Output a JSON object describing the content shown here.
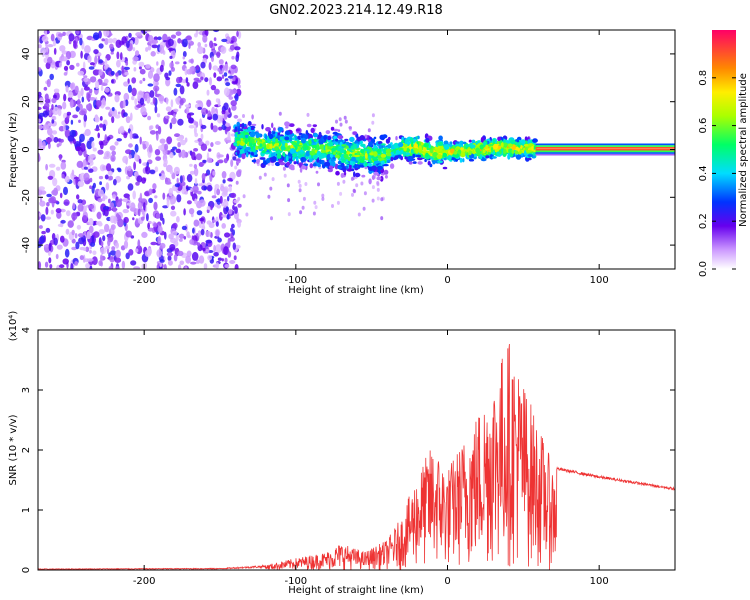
{
  "title": "GN02.2023.214.12.49.R18",
  "chart_data": [
    {
      "type": "heatmap",
      "xlabel": "Height of straight line (km)",
      "ylabel": "Frequency (Hz)",
      "xlim": [
        -270,
        150
      ],
      "ylim": [
        -50,
        50
      ],
      "x_ticks": [
        -200,
        -100,
        0,
        100
      ],
      "y_ticks": [
        -40,
        -20,
        0,
        20,
        40
      ],
      "colorbar": {
        "label": "Normalized spectral amplitude",
        "range": [
          0,
          1
        ],
        "ticks": [
          0.0,
          0.2,
          0.4,
          0.6,
          0.8
        ]
      },
      "ridge": [
        {
          "x": -140,
          "y": 4
        },
        {
          "x": -120,
          "y": 2
        },
        {
          "x": -100,
          "y": 1
        },
        {
          "x": -80,
          "y": 0
        },
        {
          "x": -60,
          "y": -2
        },
        {
          "x": -45,
          "y": -3
        },
        {
          "x": -35,
          "y": 0
        },
        {
          "x": -20,
          "y": 1
        },
        {
          "x": -10,
          "y": -1
        },
        {
          "x": 0,
          "y": -1
        },
        {
          "x": 20,
          "y": 0
        },
        {
          "x": 40,
          "y": 1
        },
        {
          "x": 58,
          "y": 0
        },
        {
          "x": 150,
          "y": 0
        }
      ]
    },
    {
      "type": "line",
      "xlabel": "Height of straight line (km)",
      "ylabel": "SNR (10 * v/v)",
      "multiplier": "(x10⁴)",
      "xlim": [
        -270,
        150
      ],
      "ylim": [
        0,
        4
      ],
      "x_ticks": [
        -200,
        -100,
        0,
        100
      ],
      "y_ticks": [
        0,
        1,
        2,
        3,
        4
      ],
      "color": "#ee3333",
      "envelope": [
        {
          "x": -270,
          "y": 0.02
        },
        {
          "x": -150,
          "y": 0.03
        },
        {
          "x": -120,
          "y": 0.08
        },
        {
          "x": -100,
          "y": 0.2
        },
        {
          "x": -80,
          "y": 0.3
        },
        {
          "x": -70,
          "y": 0.45
        },
        {
          "x": -55,
          "y": 0.3
        },
        {
          "x": -40,
          "y": 0.5
        },
        {
          "x": -30,
          "y": 0.9
        },
        {
          "x": -20,
          "y": 1.6
        },
        {
          "x": -10,
          "y": 2.1
        },
        {
          "x": 0,
          "y": 1.7
        },
        {
          "x": 15,
          "y": 2.4
        },
        {
          "x": 30,
          "y": 3.2
        },
        {
          "x": 40,
          "y": 3.9
        },
        {
          "x": 55,
          "y": 2.8
        },
        {
          "x": 70,
          "y": 1.7
        },
        {
          "x": 100,
          "y": 1.55
        },
        {
          "x": 150,
          "y": 1.35
        }
      ]
    }
  ]
}
